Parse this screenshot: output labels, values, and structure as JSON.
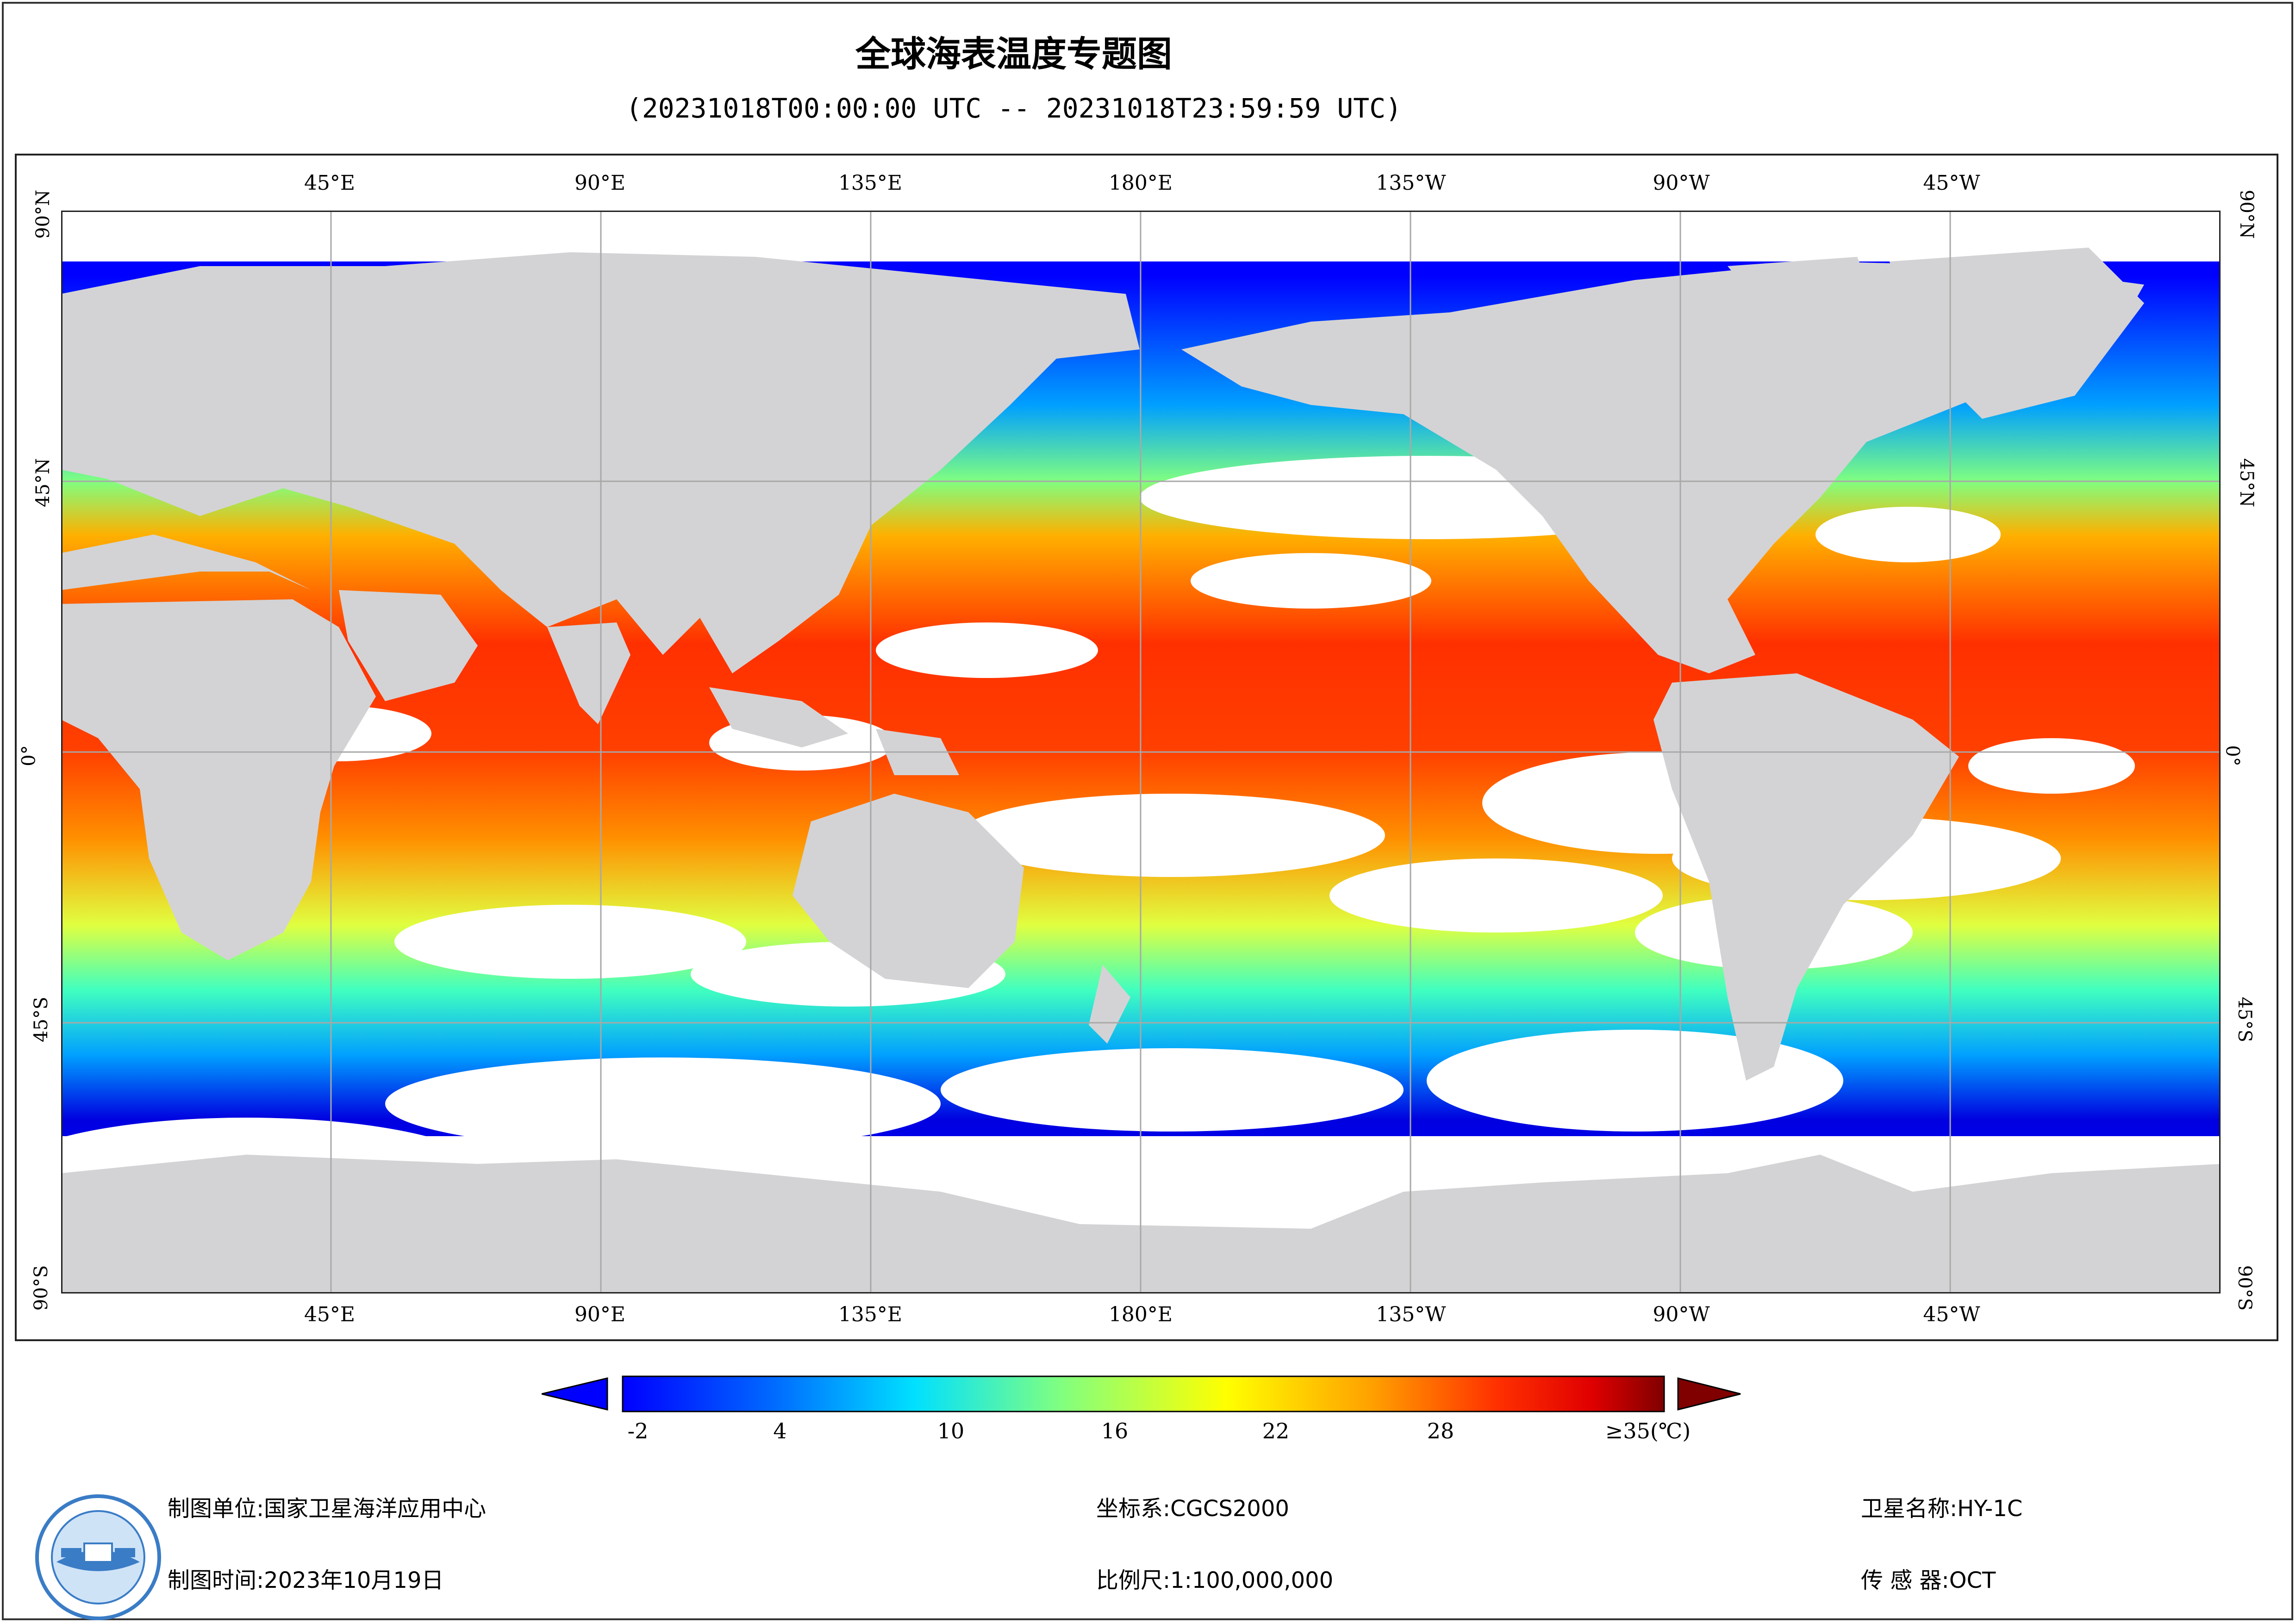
{
  "title": "全球海表温度专题图",
  "subtitle": "(20231018T00:00:00 UTC -- 20231018T23:59:59 UTC)",
  "map": {
    "longitude_labels": [
      "45°E",
      "90°E",
      "135°E",
      "180°E",
      "135°W",
      "90°W",
      "45°W"
    ],
    "latitude_labels": [
      "90°N",
      "45°N",
      "0°",
      "45°S",
      "90°S"
    ],
    "colors": {
      "land": "#d3d3d5",
      "no_data": "#ffffff",
      "grid": "#a8a8a8",
      "colormap": [
        "#0000ff",
        "#0099ff",
        "#00ffff",
        "#80ff80",
        "#ffff00",
        "#ffa000",
        "#ff3000",
        "#e00000",
        "#800000"
      ]
    }
  },
  "legend": {
    "tick_labels": [
      "-2",
      "4",
      "10",
      "16",
      "22",
      "28",
      "≥35(℃)"
    ],
    "under_color": "#0000ff",
    "over_color": "#800000"
  },
  "footer": {
    "org": "制图单位:国家卫星海洋应用中心",
    "date": "制图时间:2023年10月19日",
    "crs": "坐标系:CGCS2000",
    "scale": "比例尺:1:100,000,000",
    "satellite": "卫星名称:HY-1C",
    "sensor": "传 感 器:OCT"
  }
}
